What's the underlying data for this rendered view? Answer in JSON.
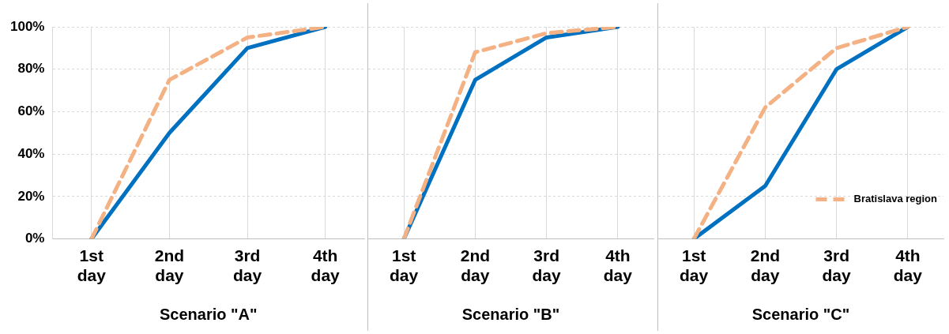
{
  "chart_data": [
    {
      "type": "line",
      "xlabel": "Scenario \"A\"",
      "categories": [
        "1st day",
        "2nd day",
        "3rd day",
        "4th day"
      ],
      "ylim": [
        0,
        100
      ],
      "yticks": [
        {
          "value": 0,
          "label": "0%"
        },
        {
          "value": 20,
          "label": "20%"
        },
        {
          "value": 40,
          "label": "40%"
        },
        {
          "value": 60,
          "label": "60%"
        },
        {
          "value": 80,
          "label": "80%"
        },
        {
          "value": 100,
          "label": "100%"
        }
      ],
      "grid": true,
      "marker": "none",
      "series": [
        {
          "color": "#0070c0",
          "line_style": "solid",
          "values": [
            0,
            50,
            90,
            100
          ]
        },
        {
          "color": "#f4b183",
          "line_style": "dashed",
          "values": [
            0,
            75,
            95,
            100
          ]
        }
      ]
    },
    {
      "type": "line",
      "xlabel": "Scenario \"B\"",
      "categories": [
        "1st day",
        "2nd day",
        "3rd day",
        "4th day"
      ],
      "ylim": [
        0,
        100
      ],
      "yticks": [
        {
          "value": 0,
          "label": null
        },
        {
          "value": 20,
          "label": null
        },
        {
          "value": 40,
          "label": null
        },
        {
          "value": 60,
          "label": null
        },
        {
          "value": 80,
          "label": null
        },
        {
          "value": 100,
          "label": null
        }
      ],
      "grid": true,
      "marker": "none",
      "tick_labels": "x",
      "series": [
        {
          "color": "#0070c0",
          "line_style": "solid",
          "values": [
            0,
            75,
            95,
            100
          ]
        },
        {
          "color": "#f4b183",
          "line_style": "dashed",
          "values": [
            0,
            88,
            97,
            100
          ]
        }
      ]
    },
    {
      "type": "line",
      "xlabel": "Scenario \"C\"",
      "categories": [
        "1st day",
        "2nd day",
        "3rd day",
        "4th day"
      ],
      "ylim": [
        0,
        100
      ],
      "yticks": [
        {
          "value": 0,
          "label": null
        },
        {
          "value": 20,
          "label": null
        },
        {
          "value": 40,
          "label": null
        },
        {
          "value": 60,
          "label": null
        },
        {
          "value": 80,
          "label": null
        },
        {
          "value": 100,
          "label": null
        }
      ],
      "grid": true,
      "marker": "none",
      "tick_labels": "x",
      "legend": "bottom right",
      "series": [
        {
          "color": "#0070c0",
          "line_style": "solid",
          "values": [
            0,
            25,
            80,
            100
          ]
        },
        {
          "name": "Bratislava region",
          "color": "#f4b183",
          "line_style": "dashed",
          "values": [
            0,
            62,
            90,
            100
          ]
        }
      ]
    }
  ]
}
